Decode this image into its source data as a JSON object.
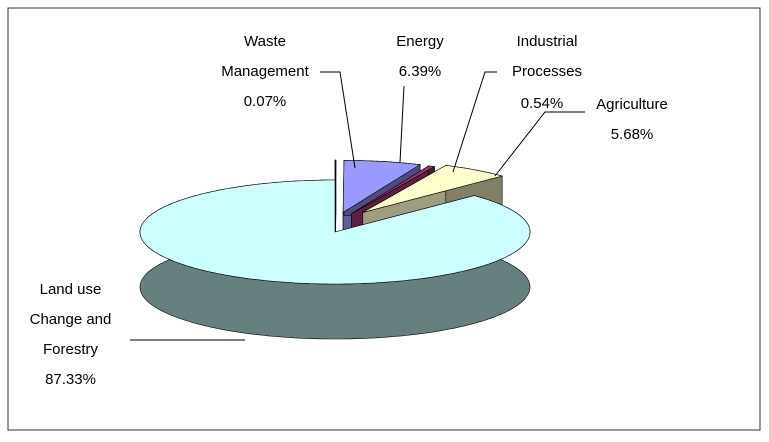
{
  "chart_data": {
    "type": "pie",
    "categories": [
      "Waste Management",
      "Energy",
      "Industrial Processes",
      "Agriculture",
      "Land use Change and Forestry"
    ],
    "values": [
      0.07,
      6.39,
      0.54,
      5.68,
      87.33
    ],
    "value_labels": [
      "0.07%",
      "6.39%",
      "0.54%",
      "5.68%",
      "87.33%"
    ],
    "colors": [
      "#6666aa",
      "#9999ff",
      "#993366",
      "#ffffcc",
      "#ccffff"
    ]
  }
}
